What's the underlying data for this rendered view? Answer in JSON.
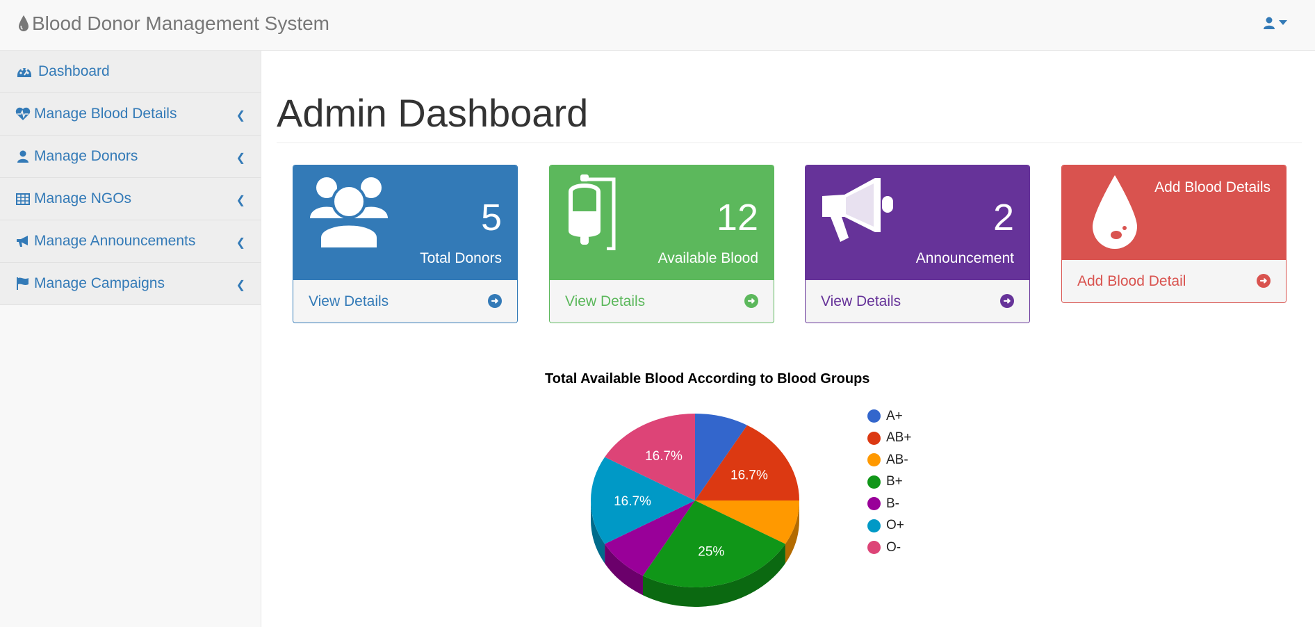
{
  "header": {
    "title": "Blood Donor Management System"
  },
  "sidebar": {
    "items": [
      {
        "label": "Dashboard"
      },
      {
        "label": "Manage Blood Details"
      },
      {
        "label": "Manage Donors"
      },
      {
        "label": "Manage NGOs"
      },
      {
        "label": "Manage Announcements"
      },
      {
        "label": "Manage Campaigns"
      }
    ]
  },
  "main": {
    "title": "Admin Dashboard",
    "panels": [
      {
        "count": "5",
        "label": "Total Donors",
        "link": "View Details",
        "color": "#337ab7",
        "icon": "users-icon"
      },
      {
        "count": "12",
        "label": "Available Blood",
        "link": "View Details",
        "color": "#5cb85c",
        "icon": "blood-bag-icon"
      },
      {
        "count": "2",
        "label": "Announcement",
        "link": "View Details",
        "color": "#663399",
        "icon": "megaphone-icon"
      },
      {
        "label": "Add Blood Details",
        "link": "Add Blood Detail",
        "color": "#d9534f",
        "icon": "blood-drop-icon"
      }
    ]
  },
  "chart_data": {
    "type": "pie",
    "title": "Total Available Blood According to Blood Groups",
    "categories": [
      "A+",
      "AB+",
      "AB-",
      "B+",
      "B-",
      "O+",
      "O-"
    ],
    "values": [
      1,
      2,
      1,
      3,
      1,
      2,
      2
    ],
    "labels": [
      "",
      "16.7%",
      "",
      "25%",
      "",
      "16.7%",
      "16.7%"
    ],
    "colors": [
      "#3366cc",
      "#dc3912",
      "#ff9900",
      "#109618",
      "#990099",
      "#0099c6",
      "#dd4477"
    ],
    "legend": "right",
    "style": "3d"
  }
}
